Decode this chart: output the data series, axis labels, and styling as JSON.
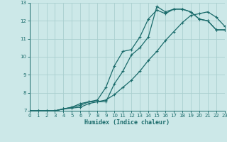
{
  "xlabel": "Humidex (Indice chaleur)",
  "xlim": [
    0,
    23
  ],
  "ylim": [
    7,
    13
  ],
  "yticks": [
    7,
    8,
    9,
    10,
    11,
    12,
    13
  ],
  "xticks": [
    0,
    1,
    2,
    3,
    4,
    5,
    6,
    7,
    8,
    9,
    10,
    11,
    12,
    13,
    14,
    15,
    16,
    17,
    18,
    19,
    20,
    21,
    22,
    23
  ],
  "background_color": "#cce8e8",
  "grid_color": "#aacfcf",
  "line_color": "#1a6b6b",
  "line1_y": [
    7.0,
    7.0,
    7.0,
    7.0,
    7.1,
    7.2,
    7.3,
    7.5,
    7.5,
    7.5,
    8.5,
    9.2,
    10.1,
    10.5,
    11.1,
    12.8,
    12.5,
    12.65,
    12.65,
    12.5,
    12.1,
    12.0,
    11.5,
    11.5
  ],
  "line2_y": [
    7.0,
    7.0,
    7.0,
    7.0,
    7.1,
    7.2,
    7.4,
    7.5,
    7.6,
    8.3,
    9.5,
    10.3,
    10.4,
    11.1,
    12.1,
    12.6,
    12.4,
    12.65,
    12.65,
    12.5,
    12.1,
    12.0,
    11.5,
    11.5
  ],
  "line3_y": [
    7.0,
    7.0,
    7.0,
    7.0,
    7.1,
    7.15,
    7.2,
    7.4,
    7.5,
    7.6,
    7.9,
    8.3,
    8.7,
    9.2,
    9.8,
    10.3,
    10.9,
    11.4,
    11.9,
    12.3,
    12.4,
    12.5,
    12.2,
    11.7
  ]
}
